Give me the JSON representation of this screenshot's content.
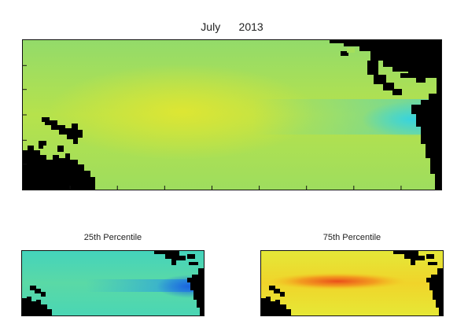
{
  "chart_data": [
    {
      "type": "heatmap",
      "title": "July      2013",
      "colormap": "jet",
      "land_color": "#000000",
      "grid": false,
      "field": {
        "base": "#a6e05a",
        "center_band": "#dde636",
        "eastern_equatorial": "#3fd6d6",
        "coastal_east": "#4bd3c2"
      }
    },
    {
      "type": "heatmap",
      "title": "25th Percentile",
      "colormap": "jet",
      "land_color": "#000000",
      "field": {
        "base": "#46d6b4",
        "center_band": "#62dca0",
        "eastern_equatorial": "#1e7adf"
      }
    },
    {
      "type": "heatmap",
      "title": "75th Percentile",
      "colormap": "jet",
      "land_color": "#000000",
      "field": {
        "base": "#e6ea30",
        "center_band": "#f08a1e",
        "core": "#ea5a1c"
      }
    }
  ]
}
